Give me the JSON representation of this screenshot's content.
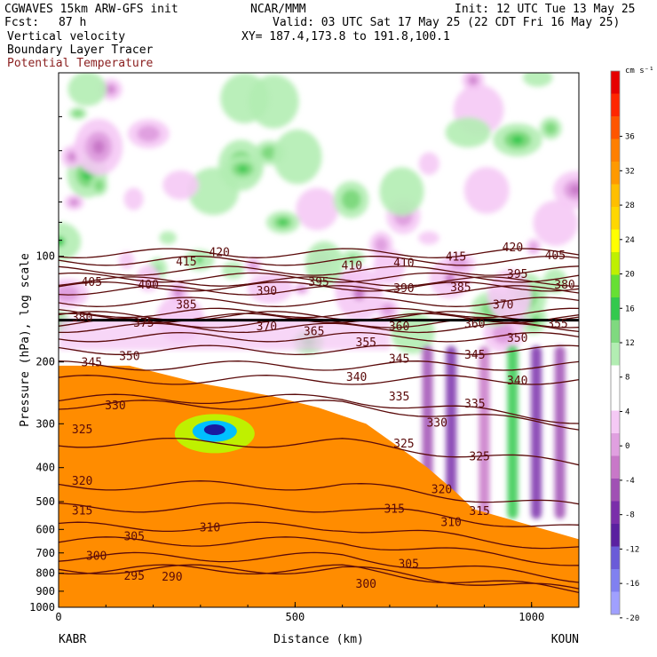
{
  "header": {
    "model": "CGWAVES 15km ARW-GFS init",
    "org": "NCAR/MMM",
    "init": "Init: 12 UTC Tue 13 May 25",
    "fcst_label": "Fcst:",
    "fcst_value": "87 h",
    "valid": "Valid: 03 UTC Sat 17 May 25 (22 CDT Fri 16 May 25)",
    "field1": "Vertical velocity",
    "field2": "Boundary Layer Tracer",
    "field3": "Potential Temperature",
    "xy": "XY= 187.4,173.8 to 191.8,100.1",
    "field3_color": "#8b2020"
  },
  "chart_data": {
    "type": "heatmap",
    "title": "Vertical velocity",
    "xlabel": "Distance (km)",
    "ylabel": "Pressure (hPa), log scale",
    "xlim": [
      0,
      1100
    ],
    "ylim": [
      1000,
      30
    ],
    "x_ticks": [
      "0",
      "500",
      "1000"
    ],
    "x_tick_values": [
      0,
      500,
      1000
    ],
    "y_ticks": [
      "100",
      "200",
      "300",
      "400",
      "500",
      "600",
      "700",
      "800",
      "900",
      "1000"
    ],
    "y_tick_values": [
      100,
      200,
      300,
      400,
      500,
      600,
      700,
      800,
      900,
      1000
    ],
    "y_scale": "log",
    "endpoints": {
      "left": "KABR",
      "right": "KOUN"
    },
    "colorbar": {
      "unit": "cm s⁻¹",
      "labels": [
        "36",
        "32",
        "28",
        "24",
        "20",
        "16",
        "12",
        "8",
        "4",
        "0",
        "-4",
        "-8",
        "-12",
        "-16",
        "-20"
      ],
      "colors": [
        "#e60000",
        "#ff2600",
        "#ff5500",
        "#ff7f00",
        "#ff9900",
        "#ffbf00",
        "#ffd700",
        "#ffff00",
        "#bff000",
        "#66e033",
        "#33c94d",
        "#7fd97f",
        "#b2edb2",
        "#ffffff",
        "#ffffff",
        "#f5c9f5",
        "#e0a0e0",
        "#c878c8",
        "#a050b4",
        "#7a2eaa",
        "#5a20a0",
        "#6a5bd8",
        "#8080f0",
        "#a0a0ff"
      ]
    },
    "tracer_fill_colors": [
      "#ff8c00",
      "#ffd700",
      "#ffff00",
      "#bff000",
      "#33d933",
      "#00c8a0",
      "#00bfff",
      "#0055ff",
      "#1a1aa0"
    ],
    "theta_contours": [
      {
        "label": "295",
        "p": 780
      },
      {
        "label": "290",
        "p": 780
      },
      {
        "label": "300",
        "p": 720
      },
      {
        "label": "305",
        "p": 650
      },
      {
        "label": "310",
        "p": 590
      },
      {
        "label": "315",
        "p": 520
      },
      {
        "label": "320",
        "p": 450
      },
      {
        "label": "325",
        "p": 340
      },
      {
        "label": "330",
        "p": 265
      },
      {
        "label": "335",
        "p": 255
      },
      {
        "label": "340",
        "p": 225
      },
      {
        "label": "345",
        "p": 205
      },
      {
        "label": "350",
        "p": 185
      },
      {
        "label": "355",
        "p": 170
      },
      {
        "label": "360",
        "p": 160
      },
      {
        "label": "365",
        "p": 155
      },
      {
        "label": "370",
        "p": 148
      },
      {
        "label": "375",
        "p": 150
      },
      {
        "label": "380",
        "p": 145
      },
      {
        "label": "385",
        "p": 135
      },
      {
        "label": "390",
        "p": 125
      },
      {
        "label": "395",
        "p": 118
      },
      {
        "label": "400",
        "p": 122
      },
      {
        "label": "405",
        "p": 115
      },
      {
        "label": "410",
        "p": 110
      },
      {
        "label": "415",
        "p": 103
      },
      {
        "label": "420",
        "p": 98
      }
    ],
    "contour_labels": [
      {
        "t": "420",
        "x": 340,
        "p": 97
      },
      {
        "t": "415",
        "x": 270,
        "p": 103
      },
      {
        "t": "410",
        "x": 620,
        "p": 106
      },
      {
        "t": "410",
        "x": 730,
        "p": 104
      },
      {
        "t": "415",
        "x": 840,
        "p": 100
      },
      {
        "t": "420",
        "x": 960,
        "p": 94
      },
      {
        "t": "405",
        "x": 1050,
        "p": 99
      },
      {
        "t": "405",
        "x": 70,
        "p": 118
      },
      {
        "t": "400",
        "x": 190,
        "p": 120
      },
      {
        "t": "395",
        "x": 550,
        "p": 118
      },
      {
        "t": "390",
        "x": 440,
        "p": 125
      },
      {
        "t": "390",
        "x": 730,
        "p": 123
      },
      {
        "t": "385",
        "x": 850,
        "p": 122
      },
      {
        "t": "395",
        "x": 970,
        "p": 112
      },
      {
        "t": "380",
        "x": 1070,
        "p": 120
      },
      {
        "t": "385",
        "x": 270,
        "p": 137
      },
      {
        "t": "370",
        "x": 940,
        "p": 137
      },
      {
        "t": "380",
        "x": 50,
        "p": 149
      },
      {
        "t": "375",
        "x": 180,
        "p": 154
      },
      {
        "t": "370",
        "x": 440,
        "p": 158
      },
      {
        "t": "365",
        "x": 540,
        "p": 163
      },
      {
        "t": "360",
        "x": 720,
        "p": 158
      },
      {
        "t": "360",
        "x": 880,
        "p": 155
      },
      {
        "t": "355",
        "x": 1055,
        "p": 155
      },
      {
        "t": "355",
        "x": 650,
        "p": 175
      },
      {
        "t": "350",
        "x": 970,
        "p": 170
      },
      {
        "t": "345",
        "x": 70,
        "p": 200
      },
      {
        "t": "350",
        "x": 150,
        "p": 192
      },
      {
        "t": "345",
        "x": 720,
        "p": 195
      },
      {
        "t": "345",
        "x": 880,
        "p": 190
      },
      {
        "t": "340",
        "x": 630,
        "p": 220
      },
      {
        "t": "340",
        "x": 970,
        "p": 225
      },
      {
        "t": "335",
        "x": 720,
        "p": 250
      },
      {
        "t": "335",
        "x": 880,
        "p": 262
      },
      {
        "t": "330",
        "x": 120,
        "p": 265
      },
      {
        "t": "330",
        "x": 800,
        "p": 297
      },
      {
        "t": "325",
        "x": 50,
        "p": 310
      },
      {
        "t": "325",
        "x": 730,
        "p": 340
      },
      {
        "t": "325",
        "x": 890,
        "p": 370
      },
      {
        "t": "320",
        "x": 50,
        "p": 435
      },
      {
        "t": "320",
        "x": 810,
        "p": 460
      },
      {
        "t": "315",
        "x": 50,
        "p": 528
      },
      {
        "t": "315",
        "x": 710,
        "p": 522
      },
      {
        "t": "315",
        "x": 890,
        "p": 530
      },
      {
        "t": "310",
        "x": 320,
        "p": 590
      },
      {
        "t": "310",
        "x": 830,
        "p": 570
      },
      {
        "t": "305",
        "x": 160,
        "p": 625
      },
      {
        "t": "305",
        "x": 740,
        "p": 750
      },
      {
        "t": "300",
        "x": 80,
        "p": 712
      },
      {
        "t": "300",
        "x": 650,
        "p": 855
      },
      {
        "t": "295",
        "x": 160,
        "p": 810
      },
      {
        "t": "290",
        "x": 240,
        "p": 815
      }
    ]
  }
}
